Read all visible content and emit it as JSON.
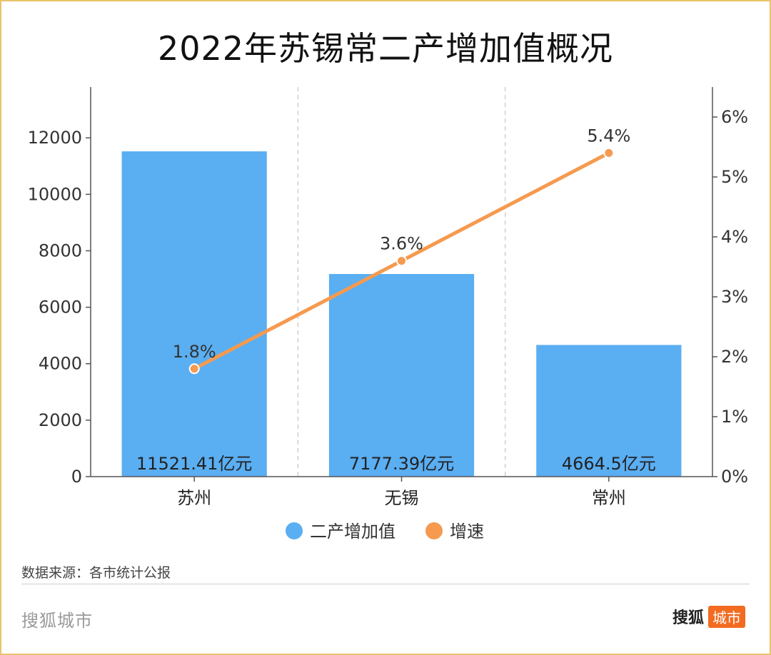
{
  "footer": {
    "source": "数据来源：各市统计公报",
    "brand_left": "搜狐城市",
    "brand_right_name": "搜狐",
    "brand_right_tag": "城市"
  },
  "chart_data": {
    "type": "bar",
    "title": "2022年苏锡常二产增加值概况",
    "categories": [
      "苏州",
      "无锡",
      "常州"
    ],
    "series": [
      {
        "name": "二产增加值",
        "type": "bar",
        "axis": "left",
        "values": [
          11521.41,
          7177.39,
          4664.5
        ],
        "labels": [
          "11521.41亿元",
          "7177.39亿元",
          "4664.5亿元"
        ],
        "color": "#5aaef2"
      },
      {
        "name": "增速",
        "type": "line",
        "axis": "right",
        "values": [
          1.8,
          3.6,
          5.4
        ],
        "labels": [
          "1.8%",
          "3.6%",
          "5.4%"
        ],
        "color": "#f59a4f"
      }
    ],
    "y_left": {
      "ylim": [
        0,
        13800
      ],
      "ticks": [
        0,
        2000,
        4000,
        6000,
        8000,
        10000,
        12000
      ]
    },
    "y_right": {
      "ylim": [
        0,
        6.5
      ],
      "ticks": [
        0,
        1,
        2,
        3,
        4,
        5,
        6
      ],
      "tick_labels": [
        "0%",
        "1%",
        "2%",
        "3%",
        "4%",
        "5%",
        "6%"
      ]
    },
    "grid": "vertical dashed separators",
    "legend": "bottom-center"
  }
}
